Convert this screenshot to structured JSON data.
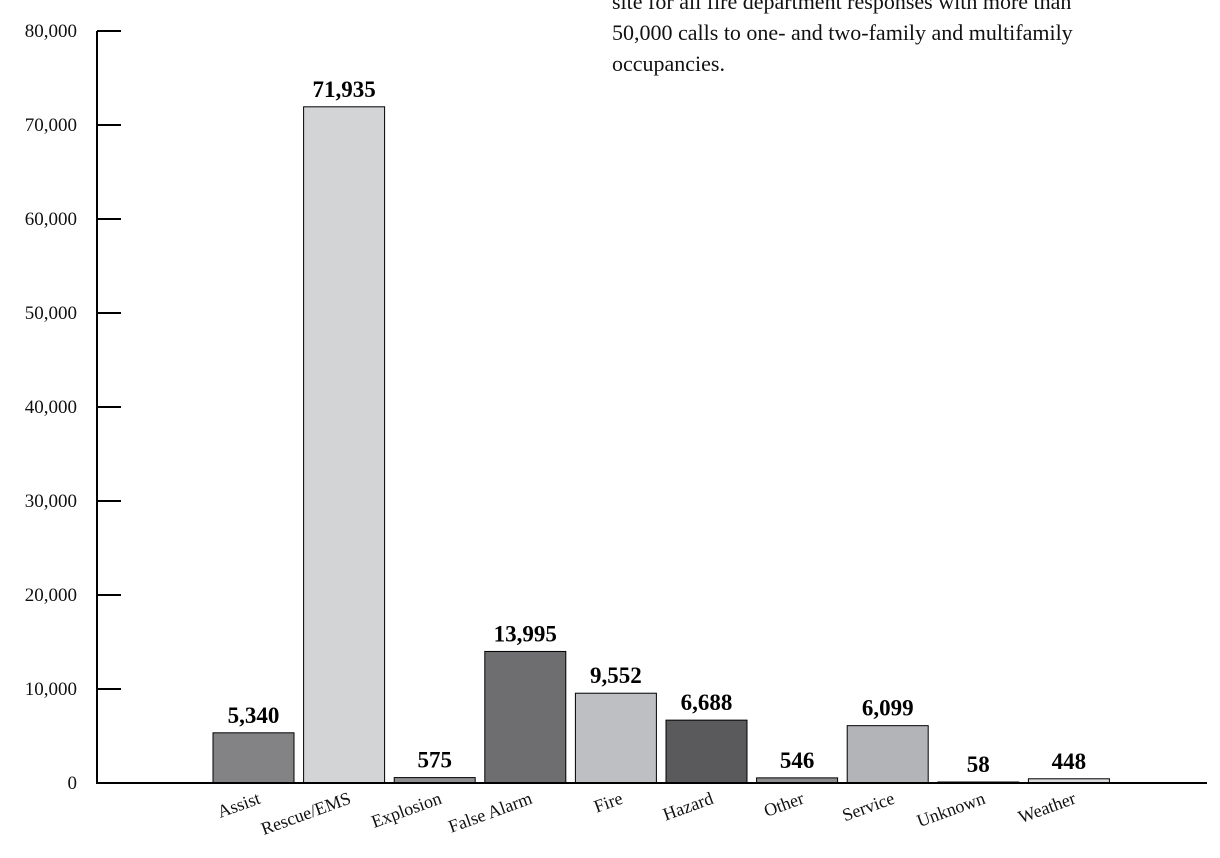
{
  "annotation": {
    "lines": [
      "site for all fire department responses with more than",
      "50,000 calls to one- and two-family and multifamily",
      "occupancies."
    ]
  },
  "chart_data": {
    "type": "bar",
    "title": "",
    "xlabel": "",
    "ylabel": "",
    "ylim": [
      0,
      80000
    ],
    "yticks": [
      0,
      10000,
      20000,
      30000,
      40000,
      50000,
      60000,
      70000,
      80000
    ],
    "ytick_labels": [
      "0",
      "10,000",
      "20,000",
      "30,000",
      "40,000",
      "50,000",
      "60,000",
      "70,000",
      "80,000"
    ],
    "categories": [
      "Assist",
      "Rescue/EMS",
      "Explosion",
      "False Alarm",
      "Fire",
      "Hazard",
      "Other",
      "Service",
      "Unknown",
      "Weather"
    ],
    "values": [
      5340,
      71935,
      575,
      13995,
      9552,
      6688,
      546,
      6099,
      58,
      448
    ],
    "value_labels": [
      "5,340",
      "71,935",
      "575",
      "13,995",
      "9,552",
      "6,688",
      "546",
      "6,099",
      "58",
      "448"
    ],
    "colors": [
      "#838386",
      "#d3d4d6",
      "#8f8f92",
      "#6e6e71",
      "#bebfc2",
      "#5a5a5d",
      "#8e8e91",
      "#b3b4b7",
      "#8e8e91",
      "#dcdcde"
    ],
    "grid": false,
    "legend": "none"
  }
}
